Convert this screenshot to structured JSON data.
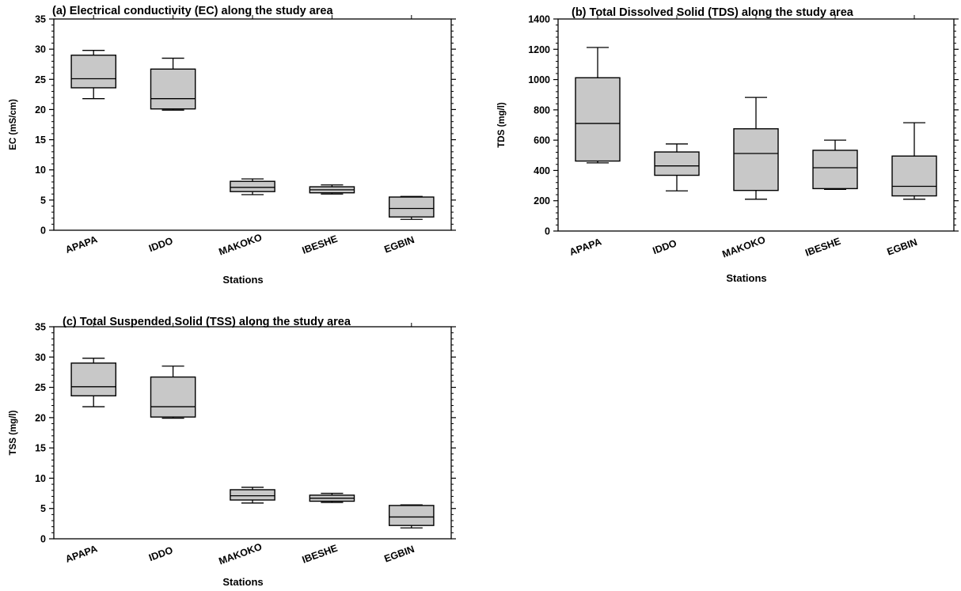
{
  "chart_data": [
    {
      "type": "box",
      "title": "(a) Electrical conductivity (EC) along the study area",
      "xlabel": "Stations",
      "ylabel": "EC (mS/cm)",
      "ylim": [
        0,
        35
      ],
      "yticks": [
        0,
        5,
        10,
        15,
        20,
        25,
        30,
        35
      ],
      "categories": [
        "APAPA",
        "IDDO",
        "MAKOKO",
        "IBESHE",
        "EGBIN"
      ],
      "boxes": [
        {
          "min": 21.8,
          "q1": 23.6,
          "median": 25.1,
          "q3": 29.0,
          "max": 29.8
        },
        {
          "min": 19.9,
          "q1": 20.1,
          "median": 21.8,
          "q3": 26.7,
          "max": 28.5
        },
        {
          "min": 5.9,
          "q1": 6.4,
          "median": 7.1,
          "q3": 8.1,
          "max": 8.5
        },
        {
          "min": 6.0,
          "q1": 6.2,
          "median": 6.7,
          "q3": 7.2,
          "max": 7.5
        },
        {
          "min": 1.8,
          "q1": 2.2,
          "median": 3.6,
          "q3": 5.5,
          "max": 5.6
        }
      ],
      "box_color": "#c8c8c8"
    },
    {
      "type": "box",
      "title": "(b) Total Dissolved Solid (TDS) along the study area",
      "xlabel": "Stations",
      "ylabel": "TDS (mg/l)",
      "ylim": [
        0,
        1400
      ],
      "yticks": [
        0,
        200,
        400,
        600,
        800,
        1000,
        1200,
        1400
      ],
      "categories": [
        "APAPA",
        "IDDO",
        "MAKOKO",
        "IBESHE",
        "EGBIN"
      ],
      "boxes": [
        {
          "min": 450,
          "q1": 462,
          "median": 710,
          "q3": 1012,
          "max": 1212
        },
        {
          "min": 265,
          "q1": 368,
          "median": 430,
          "q3": 522,
          "max": 575
        },
        {
          "min": 210,
          "q1": 268,
          "median": 512,
          "q3": 675,
          "max": 882
        },
        {
          "min": 275,
          "q1": 280,
          "median": 418,
          "q3": 533,
          "max": 600
        },
        {
          "min": 210,
          "q1": 232,
          "median": 295,
          "q3": 495,
          "max": 715
        }
      ],
      "box_color": "#c8c8c8"
    },
    {
      "type": "box",
      "title": "(c) Total Suspended Solid (TSS) along the study area",
      "xlabel": "Stations",
      "ylabel": "TSS (mg/l)",
      "ylim": [
        0,
        35
      ],
      "yticks": [
        0,
        5,
        10,
        15,
        20,
        25,
        30,
        35
      ],
      "categories": [
        "APAPA",
        "IDDO",
        "MAKOKO",
        "IBESHE",
        "EGBIN"
      ],
      "boxes": [
        {
          "min": 21.8,
          "q1": 23.6,
          "median": 25.1,
          "q3": 29.0,
          "max": 29.8
        },
        {
          "min": 19.9,
          "q1": 20.1,
          "median": 21.8,
          "q3": 26.7,
          "max": 28.5
        },
        {
          "min": 5.9,
          "q1": 6.4,
          "median": 7.1,
          "q3": 8.1,
          "max": 8.5
        },
        {
          "min": 6.0,
          "q1": 6.2,
          "median": 6.7,
          "q3": 7.2,
          "max": 7.5
        },
        {
          "min": 1.8,
          "q1": 2.2,
          "median": 3.6,
          "q3": 5.5,
          "max": 5.6
        }
      ],
      "box_color": "#c8c8c8"
    }
  ]
}
